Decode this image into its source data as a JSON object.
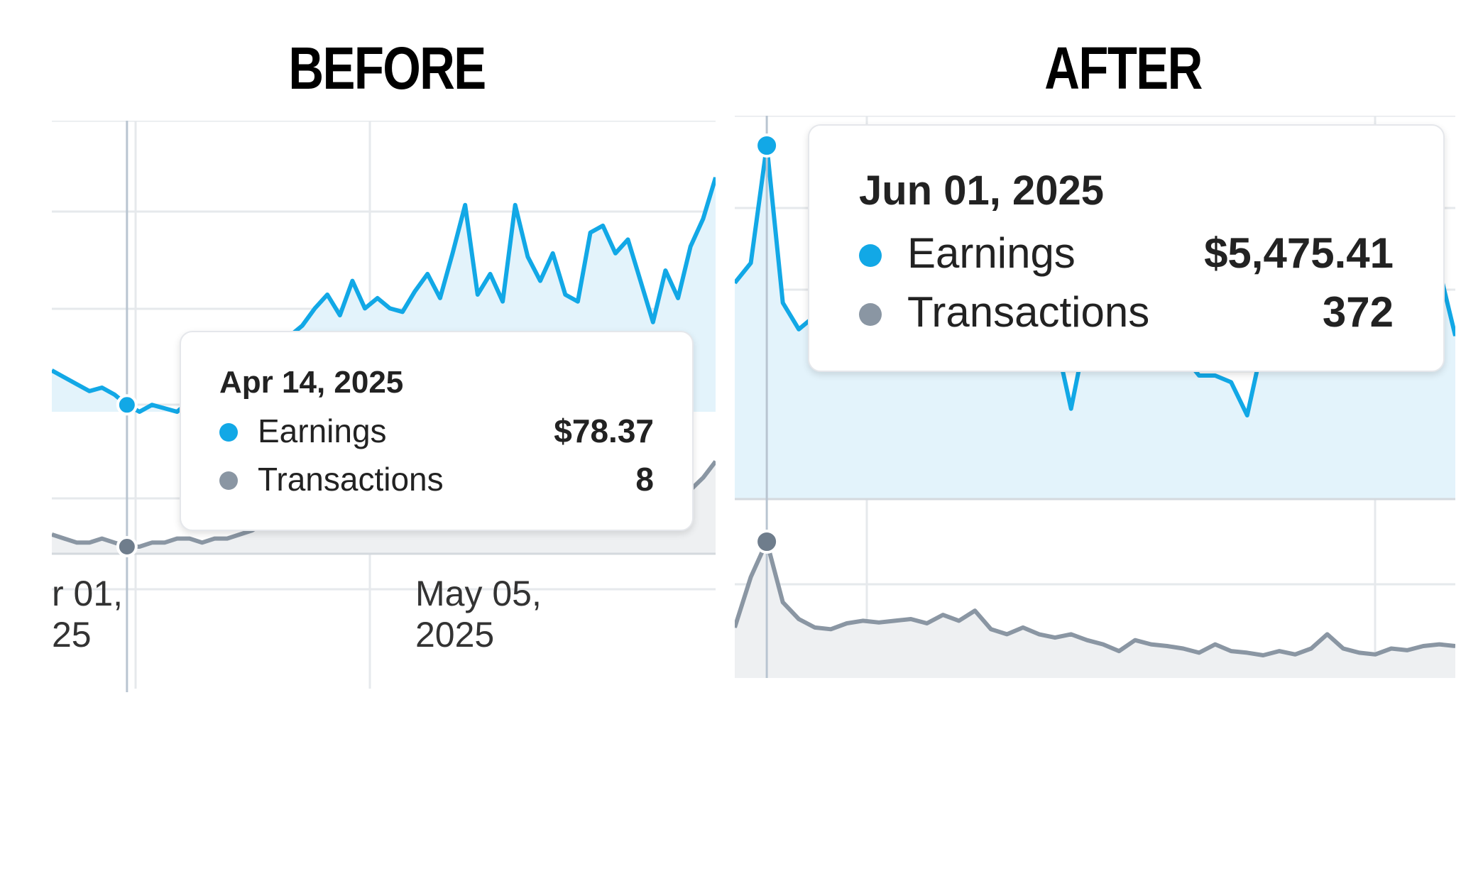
{
  "headings": {
    "before": "BEFORE",
    "after": "AFTER"
  },
  "colors": {
    "earnings": "#12a8e6",
    "earnings_fill": "#e3f3fb",
    "transactions": "#8a96a3",
    "transactions_fill": "#eef0f2",
    "grid": "#e6e9ec",
    "cursor": "#b9c5d1"
  },
  "chart_data": [
    {
      "type": "line",
      "panel": "BEFORE",
      "x_tick_labels": [
        {
          "line1": "r 01,",
          "line2": "25"
        },
        {
          "line1": "May 05,",
          "line2": "2025"
        }
      ],
      "series": [
        {
          "name": "Earnings",
          "values": [
            62,
            60,
            58,
            56,
            57,
            55,
            52,
            50,
            52,
            51,
            50,
            53,
            56,
            58,
            58,
            62,
            64,
            63,
            66,
            72,
            75,
            80,
            84,
            78,
            88,
            80,
            83,
            80,
            79,
            85,
            90,
            83,
            96,
            110,
            84,
            90,
            82,
            110,
            95,
            88,
            96,
            84,
            82,
            102,
            104,
            96,
            100,
            88,
            76,
            91,
            83,
            98,
            106,
            118
          ]
        },
        {
          "name": "Transactions",
          "values": [
            8,
            7,
            6,
            6,
            7,
            6,
            5,
            5,
            6,
            6,
            7,
            7,
            6,
            7,
            7,
            8,
            9,
            11,
            12,
            12,
            14,
            13,
            15,
            12,
            14,
            15,
            16,
            14,
            13,
            13,
            14,
            16,
            17,
            14,
            15,
            12,
            14,
            16,
            15,
            14,
            17,
            15,
            14,
            18,
            16,
            14,
            16,
            15,
            14,
            17,
            16,
            19,
            22,
            26
          ]
        }
      ],
      "tooltip": {
        "date": "Apr 14, 2025",
        "rows": [
          {
            "label": "Earnings",
            "value": "$78.37"
          },
          {
            "label": "Transactions",
            "value": "8"
          }
        ]
      }
    },
    {
      "type": "line",
      "panel": "AFTER",
      "series": [
        {
          "name": "Earnings",
          "values": [
            3400,
            3700,
            5475,
            3100,
            2700,
            2900,
            3000,
            2950,
            2900,
            2850,
            2900,
            2800,
            2850,
            2800,
            2900,
            2950,
            2850,
            2750,
            2800,
            2700,
            2600,
            1500,
            2700,
            2650,
            2500,
            2600,
            2550,
            2500,
            2300,
            2000,
            2000,
            1900,
            1400,
            2500,
            2600,
            2500,
            2700,
            2800,
            3000,
            3100,
            3200,
            3300,
            3300,
            3400,
            3600,
            2600
          ]
        },
        {
          "name": "Transactions",
          "values": [
            270,
            330,
            372,
            300,
            280,
            270,
            268,
            275,
            278,
            276,
            278,
            280,
            275,
            285,
            278,
            290,
            268,
            262,
            270,
            262,
            258,
            262,
            255,
            250,
            242,
            255,
            250,
            248,
            245,
            240,
            250,
            242,
            240,
            237,
            242,
            238,
            245,
            262,
            245,
            240,
            238,
            245,
            243,
            248,
            250,
            248
          ]
        }
      ],
      "tooltip": {
        "date": "Jun 01, 2025",
        "rows": [
          {
            "label": "Earnings",
            "value": "$5,475.41"
          },
          {
            "label": "Transactions",
            "value": "372"
          }
        ]
      }
    }
  ]
}
